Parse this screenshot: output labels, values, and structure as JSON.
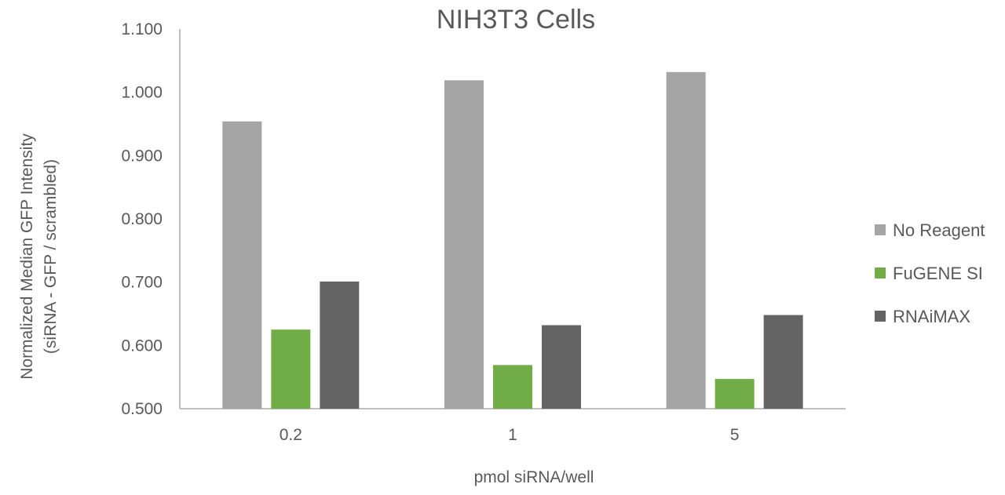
{
  "chart_data": {
    "type": "bar",
    "title": "NIH3T3 Cells",
    "xlabel": "pmol siRNA/well",
    "ylabel_lines": [
      "Normalized Median GFP Intensity",
      "(siRNA - GFP / scrambled)"
    ],
    "categories": [
      "0.2",
      "1",
      "5"
    ],
    "ylim": [
      0.5,
      1.1
    ],
    "yticks": [
      "0.500",
      "0.600",
      "0.700",
      "0.800",
      "0.900",
      "1.000",
      "1.100"
    ],
    "ytick_values": [
      0.5,
      0.6,
      0.7,
      0.8,
      0.9,
      1.0,
      1.1
    ],
    "grid": false,
    "legend_position": "right",
    "series": [
      {
        "name": "No Reagent",
        "color": "#a5a5a5",
        "values": [
          0.954,
          1.019,
          1.032
        ]
      },
      {
        "name": "FuGENE SI",
        "color": "#70ad47",
        "values": [
          0.625,
          0.569,
          0.547
        ]
      },
      {
        "name": "RNAiMAX",
        "color": "#636463",
        "values": [
          0.701,
          0.632,
          0.648
        ]
      }
    ]
  }
}
